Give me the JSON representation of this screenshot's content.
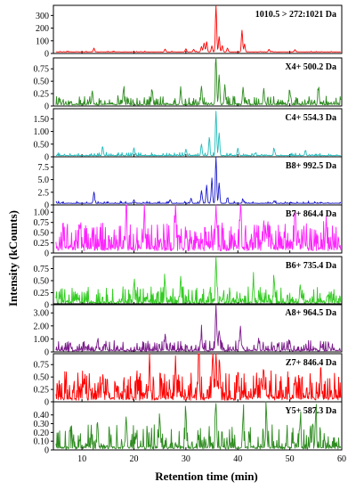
{
  "chart_data": {
    "type": "line",
    "xlabel": "Retention time (min)",
    "ylabel": "Intensity (kCounts)",
    "xlim": [
      4.5,
      60
    ],
    "x_ticks": [
      10,
      20,
      30,
      40,
      50,
      60
    ],
    "panels": [
      {
        "label": "1010.5 > 272:1021 Da",
        "color": "#ff0000",
        "ylim": [
          0,
          380
        ],
        "y_ticks": [
          0,
          100,
          200,
          300
        ],
        "y_tick_labels": [
          "0",
          "100",
          "200",
          "300"
        ],
        "baseline": 12,
        "noise": 3,
        "density": 0.15,
        "peaks": [
          [
            12.3,
            30
          ],
          [
            26,
            22
          ],
          [
            30,
            25
          ],
          [
            31.5,
            20
          ],
          [
            33,
            40
          ],
          [
            33.5,
            70
          ],
          [
            34,
            80
          ],
          [
            35,
            45
          ],
          [
            35.8,
            365
          ],
          [
            36.4,
            120
          ],
          [
            37,
            50
          ],
          [
            38,
            30
          ],
          [
            40.8,
            170
          ],
          [
            41.3,
            60
          ],
          [
            46,
            20
          ],
          [
            51,
            18
          ]
        ]
      },
      {
        "label": "X4+ 500.2 Da",
        "color": "#2e8b20",
        "ylim": [
          0,
          0.97
        ],
        "y_ticks": [
          0,
          0.25,
          0.5,
          0.75
        ],
        "y_tick_labels": [
          "0",
          "0.25",
          "0.50",
          "0.75"
        ],
        "baseline": 0.02,
        "noise": 0.08,
        "density": 0.55,
        "peaks": [
          [
            12,
            0.25
          ],
          [
            18,
            0.28
          ],
          [
            23.5,
            0.25
          ],
          [
            29,
            0.3
          ],
          [
            33,
            0.35
          ],
          [
            35.8,
            0.95
          ],
          [
            36.4,
            0.6
          ],
          [
            37.5,
            0.4
          ],
          [
            41,
            0.35
          ],
          [
            45,
            0.3
          ],
          [
            50,
            0.28
          ],
          [
            55.5,
            0.25
          ]
        ]
      },
      {
        "label": "C4+ 554.3 Da",
        "color": "#22bbbb",
        "ylim": [
          0,
          1.9
        ],
        "y_ticks": [
          0,
          0.5,
          1.0,
          1.5
        ],
        "y_tick_labels": [
          "0",
          "0.50",
          "1.00",
          "1.50"
        ],
        "baseline": 0.04,
        "noise": 0.06,
        "density": 0.35,
        "peaks": [
          [
            14,
            0.35
          ],
          [
            20,
            0.3
          ],
          [
            30,
            0.25
          ],
          [
            33,
            0.45
          ],
          [
            34.5,
            0.7
          ],
          [
            35.8,
            1.75
          ],
          [
            36.4,
            0.9
          ],
          [
            40,
            0.3
          ],
          [
            47,
            0.25
          ],
          [
            53,
            0.2
          ]
        ]
      },
      {
        "label": "B8+ 992.5 Da",
        "color": "#1a1acd",
        "ylim": [
          0,
          9.5
        ],
        "y_ticks": [
          0,
          2.5,
          5.0,
          7.5
        ],
        "y_tick_labels": [
          "0",
          "2.5",
          "5.0",
          "7.5"
        ],
        "baseline": 0.3,
        "noise": 0.2,
        "density": 0.25,
        "peaks": [
          [
            12.3,
            2.2
          ],
          [
            20,
            0.6
          ],
          [
            27,
            0.7
          ],
          [
            31,
            1.0
          ],
          [
            33,
            2.5
          ],
          [
            34,
            3.5
          ],
          [
            35,
            5.0
          ],
          [
            35.8,
            9.3
          ],
          [
            36.4,
            4.0
          ],
          [
            38,
            1.0
          ],
          [
            41,
            0.7
          ],
          [
            47,
            0.5
          ]
        ]
      },
      {
        "label": "B7+ 864.4 Da",
        "color": "#ff22ff",
        "ylim": [
          0,
          1.18
        ],
        "y_ticks": [
          0,
          0.25,
          0.5,
          0.75,
          1.0
        ],
        "y_tick_labels": [
          "0",
          "0.25",
          "0.50",
          "0.75",
          "1.00"
        ],
        "baseline": 0.05,
        "noise": 0.3,
        "density": 0.8,
        "peaks": [
          [
            18.5,
            0.95
          ],
          [
            22,
            0.8
          ],
          [
            28,
            0.85
          ],
          [
            35.8,
            1.05
          ],
          [
            40.5,
            1.05
          ],
          [
            45,
            0.7
          ],
          [
            51,
            0.85
          ],
          [
            57,
            0.65
          ]
        ]
      },
      {
        "label": "B6+ 735.4 Da",
        "color": "#33cc22",
        "ylim": [
          0,
          1.0
        ],
        "y_ticks": [
          0,
          0.25,
          0.5,
          0.75
        ],
        "y_tick_labels": [
          "0",
          "0.25",
          "0.50",
          "0.75"
        ],
        "baseline": 0.02,
        "noise": 0.15,
        "density": 0.6,
        "peaks": [
          [
            20,
            0.4
          ],
          [
            26,
            0.45
          ],
          [
            29,
            0.5
          ],
          [
            35.8,
            0.95
          ],
          [
            43,
            0.4
          ],
          [
            47,
            0.45
          ],
          [
            52,
            0.38
          ]
        ]
      },
      {
        "label": "A8+ 964.5 Da",
        "color": "#7b1a8b",
        "ylim": [
          0,
          3.7
        ],
        "y_ticks": [
          0,
          1.0,
          2.0,
          3.0
        ],
        "y_tick_labels": [
          "0",
          "1.00",
          "2.00",
          "3.00"
        ],
        "baseline": 0.06,
        "noise": 0.35,
        "density": 0.55,
        "peaks": [
          [
            13,
            0.8
          ],
          [
            26,
            1.0
          ],
          [
            33,
            1.2
          ],
          [
            35.8,
            3.5
          ],
          [
            36.4,
            1.5
          ],
          [
            40.5,
            1.9
          ],
          [
            44,
            0.8
          ],
          [
            50,
            0.7
          ]
        ]
      },
      {
        "label": "Z7+ 846.4 Da",
        "color": "#ff0000",
        "ylim": [
          0,
          0.97
        ],
        "y_ticks": [
          0,
          0.25,
          0.5,
          0.75
        ],
        "y_tick_labels": [
          "0",
          "0.25",
          "0.50",
          "0.75"
        ],
        "baseline": 0.03,
        "noise": 0.25,
        "density": 0.75,
        "peaks": [
          [
            14,
            0.45
          ],
          [
            23,
            0.6
          ],
          [
            28,
            0.7
          ],
          [
            32.5,
            0.8
          ],
          [
            35.2,
            0.9
          ],
          [
            35.8,
            0.95
          ],
          [
            36.5,
            0.7
          ],
          [
            40,
            0.55
          ],
          [
            45,
            0.6
          ],
          [
            51,
            0.4
          ],
          [
            56,
            0.35
          ]
        ]
      },
      {
        "label": "Y5+ 587.3 Da",
        "color": "#2e8b20",
        "ylim": [
          0,
          0.55
        ],
        "y_ticks": [
          0,
          0.1,
          0.2,
          0.3,
          0.4
        ],
        "y_tick_labels": [
          "0",
          "0.10",
          "0.20",
          "0.30",
          "0.40"
        ],
        "baseline": 0.01,
        "noise": 0.12,
        "density": 0.5,
        "peaks": [
          [
            13,
            0.3
          ],
          [
            18.5,
            0.35
          ],
          [
            25,
            0.3
          ],
          [
            30,
            0.38
          ],
          [
            35.8,
            0.52
          ],
          [
            41,
            0.35
          ],
          [
            45.5,
            0.42
          ],
          [
            52,
            0.3
          ],
          [
            55,
            0.4
          ]
        ]
      }
    ]
  }
}
